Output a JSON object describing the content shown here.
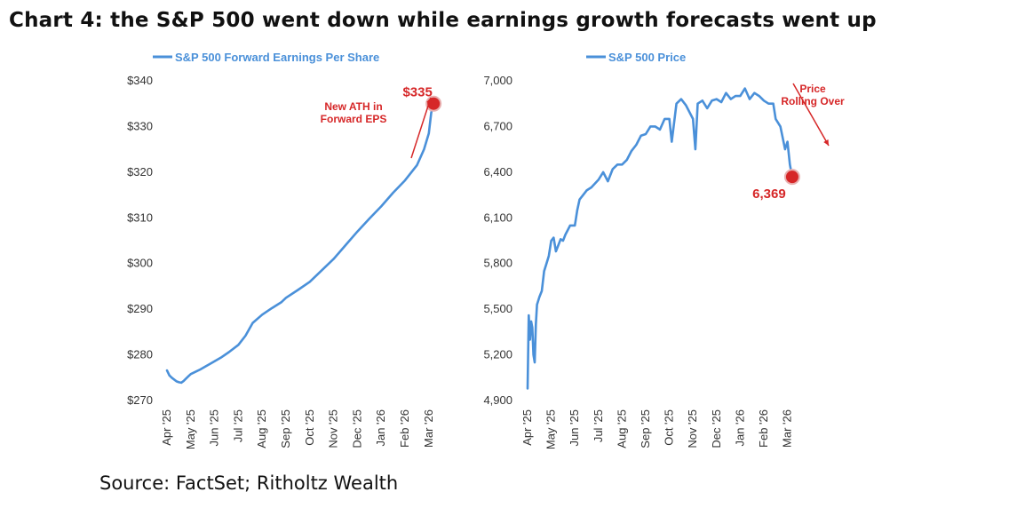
{
  "title": "Chart 4: the S&P 500 went down while earnings growth forecasts went up",
  "source": "Source: FactSet; Ritholtz Wealth",
  "colors": {
    "line": "#4a90d9",
    "accent": "#d62728"
  },
  "chart_data": [
    {
      "type": "line",
      "legend": "S&P 500 Forward Earnings Per Share",
      "legend_placement": "top",
      "ylim": [
        270,
        340
      ],
      "yticks": [
        340,
        330,
        320,
        310,
        300,
        290,
        280,
        270
      ],
      "ytick_labels": [
        "$340",
        "$330",
        "$320",
        "$310",
        "$300",
        "$290",
        "$280",
        "$270"
      ],
      "xtick_labels": [
        "Apr '25",
        "May '25",
        "Jun '25",
        "Jul '25",
        "Aug '25",
        "Sep '25",
        "Oct '25",
        "Nov '25",
        "Dec '25",
        "Jan '26",
        "Feb '26",
        "Mar '26"
      ],
      "grid": false,
      "annotation": "New ATH in\nForward EPS",
      "end_label": "$335",
      "series": [
        {
          "x": [
            0.0,
            0.1,
            0.2,
            0.3,
            0.4,
            0.5,
            0.6,
            0.7,
            0.8,
            0.9,
            1.0,
            1.2,
            1.4,
            1.6,
            1.8,
            2.0,
            2.3,
            2.6,
            3.0,
            3.3,
            3.6,
            4.0,
            4.4,
            4.8,
            5.0,
            5.5,
            6.0,
            6.5,
            7.0,
            7.5,
            8.0,
            8.5,
            9.0,
            9.5,
            10.0,
            10.5,
            10.8,
            11.0,
            11.1,
            11.2
          ],
          "values": [
            276.6,
            275.5,
            275.0,
            274.6,
            274.2,
            274.0,
            273.9,
            274.3,
            274.8,
            275.3,
            275.8,
            276.3,
            276.8,
            277.4,
            278.0,
            278.6,
            279.5,
            280.6,
            282.2,
            284.2,
            287.0,
            288.8,
            290.2,
            291.5,
            292.5,
            294.2,
            296.0,
            298.5,
            301.0,
            304.0,
            307.0,
            309.8,
            312.5,
            315.5,
            318.2,
            321.5,
            325.0,
            328.5,
            333.0,
            335.0
          ]
        }
      ]
    },
    {
      "type": "line",
      "legend": "S&P 500 Price",
      "legend_placement": "top",
      "ylim": [
        4900,
        7000
      ],
      "yticks": [
        7000,
        6700,
        6400,
        6100,
        5800,
        5500,
        5200,
        4900
      ],
      "ytick_labels": [
        "7,000",
        "6,700",
        "6,400",
        "6,100",
        "5,800",
        "5,500",
        "5,200",
        "4,900"
      ],
      "xtick_labels": [
        "Apr '25",
        "May '25",
        "Jun '25",
        "Jul '25",
        "Aug '25",
        "Sep '25",
        "Oct '25",
        "Nov '25",
        "Dec '25",
        "Jan '26",
        "Feb '26",
        "Mar '26"
      ],
      "grid": false,
      "annotation": "Price\nRolling Over",
      "end_label": "6,369",
      "series": [
        {
          "x": [
            0.0,
            0.05,
            0.1,
            0.15,
            0.2,
            0.25,
            0.3,
            0.35,
            0.4,
            0.5,
            0.6,
            0.7,
            0.8,
            0.9,
            1.0,
            1.1,
            1.2,
            1.3,
            1.4,
            1.5,
            1.6,
            1.8,
            2.0,
            2.1,
            2.2,
            2.4,
            2.5,
            2.7,
            3.0,
            3.2,
            3.4,
            3.6,
            3.8,
            4.0,
            4.2,
            4.4,
            4.6,
            4.8,
            5.0,
            5.2,
            5.4,
            5.6,
            5.8,
            6.0,
            6.1,
            6.3,
            6.5,
            6.7,
            7.0,
            7.1,
            7.2,
            7.4,
            7.6,
            7.8,
            8.0,
            8.2,
            8.4,
            8.6,
            8.8,
            9.0,
            9.2,
            9.4,
            9.6,
            9.8,
            10.0,
            10.2,
            10.4,
            10.5,
            10.7,
            10.9,
            11.0,
            11.1,
            11.2
          ],
          "values": [
            4980,
            5460,
            5300,
            5420,
            5380,
            5200,
            5150,
            5400,
            5530,
            5580,
            5620,
            5750,
            5800,
            5850,
            5950,
            5970,
            5880,
            5920,
            5960,
            5950,
            5990,
            6050,
            6050,
            6150,
            6220,
            6260,
            6280,
            6300,
            6350,
            6400,
            6340,
            6420,
            6450,
            6450,
            6480,
            6540,
            6580,
            6640,
            6650,
            6700,
            6700,
            6680,
            6750,
            6750,
            6600,
            6850,
            6880,
            6840,
            6750,
            6550,
            6850,
            6870,
            6820,
            6870,
            6880,
            6860,
            6920,
            6880,
            6900,
            6900,
            6950,
            6880,
            6920,
            6900,
            6870,
            6850,
            6850,
            6750,
            6700,
            6550,
            6600,
            6450,
            6369
          ]
        }
      ]
    }
  ]
}
